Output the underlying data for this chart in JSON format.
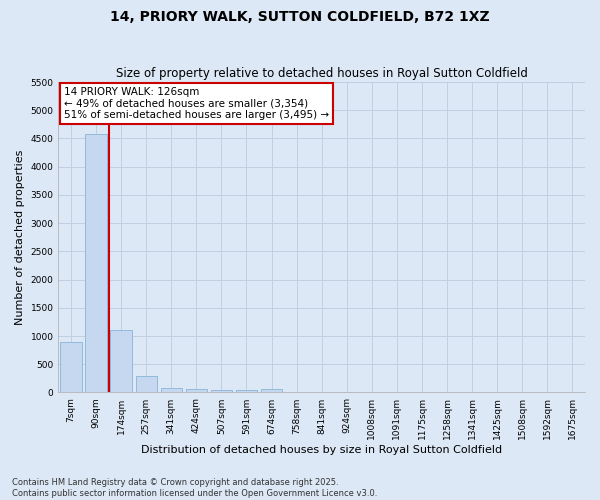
{
  "title": "14, PRIORY WALK, SUTTON COLDFIELD, B72 1XZ",
  "subtitle": "Size of property relative to detached houses in Royal Sutton Coldfield",
  "xlabel": "Distribution of detached houses by size in Royal Sutton Coldfield",
  "ylabel": "Number of detached properties",
  "footer_line1": "Contains HM Land Registry data © Crown copyright and database right 2025.",
  "footer_line2": "Contains public sector information licensed under the Open Government Licence v3.0.",
  "categories": [
    "7sqm",
    "90sqm",
    "174sqm",
    "257sqm",
    "341sqm",
    "424sqm",
    "507sqm",
    "591sqm",
    "674sqm",
    "758sqm",
    "841sqm",
    "924sqm",
    "1008sqm",
    "1091sqm",
    "1175sqm",
    "1258sqm",
    "1341sqm",
    "1425sqm",
    "1508sqm",
    "1592sqm",
    "1675sqm"
  ],
  "values": [
    900,
    4580,
    1100,
    300,
    75,
    55,
    50,
    50,
    55,
    0,
    0,
    0,
    0,
    0,
    0,
    0,
    0,
    0,
    0,
    0,
    0
  ],
  "bar_color": "#c5d8ef",
  "bar_edge_color": "#8ab4d8",
  "vline_x": 1.5,
  "vline_color": "#cc0000",
  "annotation_text": "14 PRIORY WALK: 126sqm\n← 49% of detached houses are smaller (3,354)\n51% of semi-detached houses are larger (3,495) →",
  "annotation_box_color": "white",
  "annotation_box_edge_color": "#cc0000",
  "ylim": [
    0,
    5500
  ],
  "yticks": [
    0,
    500,
    1000,
    1500,
    2000,
    2500,
    3000,
    3500,
    4000,
    4500,
    5000,
    5500
  ],
  "bg_color": "#dce8f5",
  "plot_bg_color": "#dce8f5",
  "grid_color": "#c0d0e0",
  "title_fontsize": 10,
  "subtitle_fontsize": 8.5,
  "tick_fontsize": 6.5,
  "label_fontsize": 8,
  "footer_fontsize": 6,
  "annotation_fontsize": 7.5
}
